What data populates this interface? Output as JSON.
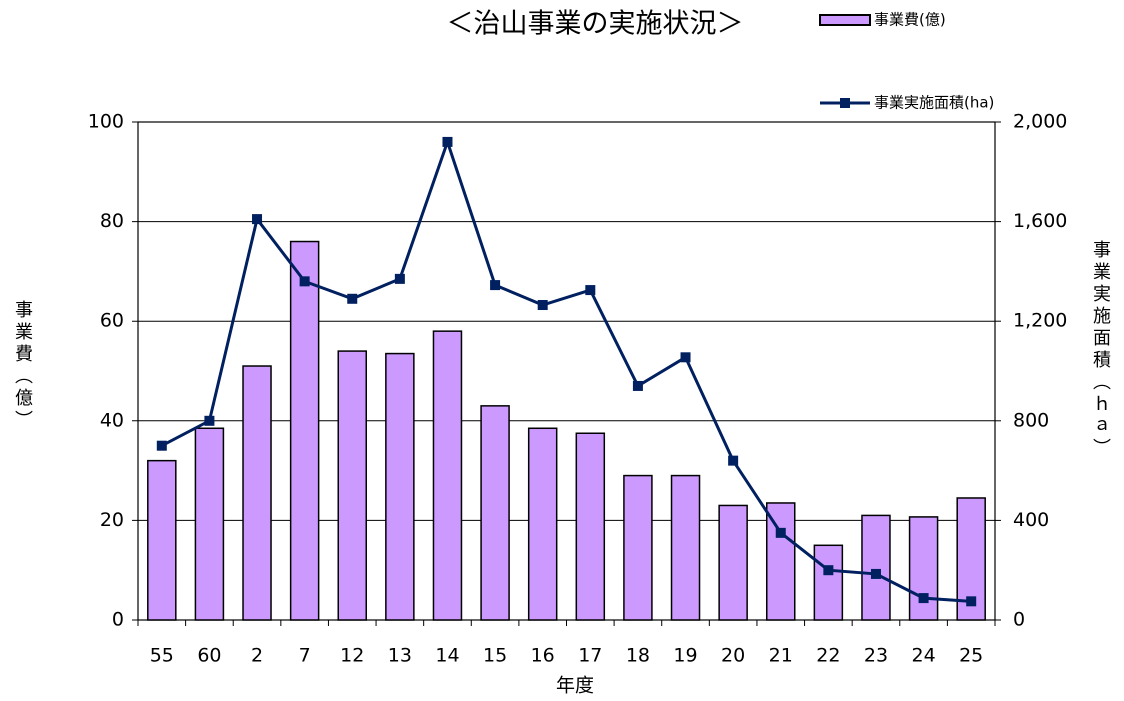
{
  "chart_data": {
    "type": "bar_line",
    "title": "＜治山事業の実施状況＞",
    "x_label": "年度",
    "y_label": "事業費（億）",
    "y2_label": "事業実施面積（ｈａ）",
    "categories": [
      "55",
      "60",
      "2",
      "7",
      "12",
      "13",
      "14",
      "15",
      "16",
      "17",
      "18",
      "19",
      "20",
      "21",
      "22",
      "23",
      "24",
      "25"
    ],
    "series": [
      {
        "name": "事業費(億)",
        "type": "bar",
        "color": "#cc99ff",
        "values": [
          32,
          38.5,
          51,
          76,
          54,
          53.5,
          58,
          43,
          38.5,
          37.5,
          29,
          29,
          23,
          23.5,
          15,
          21,
          20.7,
          24.5
        ]
      },
      {
        "name": "事業実施面積(ha)",
        "type": "line",
        "axis": "y2",
        "color": "#002060",
        "values": [
          700,
          800,
          1610,
          1360,
          1290,
          1370,
          1920,
          1345,
          1265,
          1325,
          940,
          1055,
          640,
          350,
          200,
          185,
          88,
          75
        ]
      }
    ],
    "ylim": [
      0,
      100
    ],
    "yticks": [
      0,
      20,
      40,
      60,
      80,
      100
    ],
    "y2lim": [
      0,
      2000
    ],
    "y2ticks": [
      0,
      400,
      800,
      {
        "value": 1200,
        "label": "1,200"
      },
      {
        "value": 1600,
        "label": "1,600"
      },
      {
        "value": 2000,
        "label": "2,000"
      }
    ],
    "grid": true,
    "legend": "top-right"
  }
}
